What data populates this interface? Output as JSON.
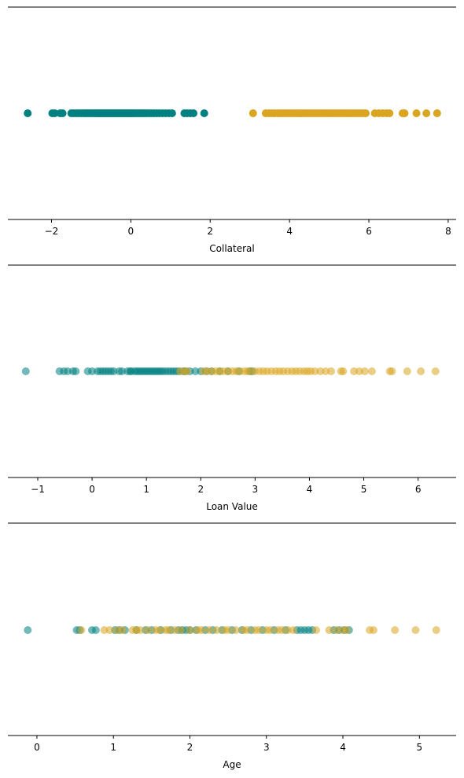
{
  "colors": {
    "class_a": "#008080",
    "class_b": "#DAA520"
  },
  "chart_data": [
    {
      "type": "scatter",
      "xlabel": "Collateral",
      "xlim": [
        -3.1,
        8.2
      ],
      "xticks": [
        -2,
        0,
        2,
        4,
        6,
        8
      ],
      "tick_labels": [
        "−2",
        "0",
        "2",
        "4",
        "6",
        "8"
      ],
      "point_opacity": 1.0,
      "series": [
        {
          "color": "#008080",
          "values": [
            -2.6,
            -1.98,
            -1.92,
            -1.78,
            -1.72,
            -1.5,
            -1.44,
            -1.38,
            -1.32,
            -1.26,
            -1.2,
            -1.15,
            -1.1,
            -1.05,
            -1.0,
            -0.95,
            -0.9,
            -0.86,
            -0.82,
            -0.78,
            -0.74,
            -0.7,
            -0.66,
            -0.62,
            -0.58,
            -0.54,
            -0.5,
            -0.46,
            -0.42,
            -0.38,
            -0.34,
            -0.3,
            -0.26,
            -0.22,
            -0.18,
            -0.14,
            -0.1,
            -0.06,
            -0.02,
            0.02,
            0.06,
            0.1,
            0.15,
            0.2,
            0.25,
            0.3,
            0.35,
            0.4,
            0.46,
            0.52,
            0.58,
            0.65,
            0.72,
            0.8,
            0.88,
            0.96,
            1.04,
            1.35,
            1.42,
            1.5,
            1.58,
            1.85
          ]
        },
        {
          "color": "#DAA520",
          "values": [
            3.08,
            3.4,
            3.48,
            3.55,
            3.62,
            3.7,
            3.76,
            3.82,
            3.88,
            3.94,
            4.0,
            4.06,
            4.12,
            4.18,
            4.24,
            4.3,
            4.36,
            4.42,
            4.48,
            4.54,
            4.6,
            4.66,
            4.72,
            4.78,
            4.84,
            4.9,
            4.96,
            5.02,
            5.08,
            5.14,
            5.2,
            5.26,
            5.32,
            5.38,
            5.44,
            5.5,
            5.56,
            5.62,
            5.68,
            5.74,
            5.8,
            5.86,
            5.92,
            6.15,
            6.25,
            6.35,
            6.45,
            6.52,
            6.85,
            6.9,
            7.2,
            7.45,
            7.72
          ]
        }
      ]
    },
    {
      "type": "scatter",
      "xlabel": "Loan Value",
      "xlim": [
        -1.55,
        6.7
      ],
      "xticks": [
        -1,
        0,
        1,
        2,
        3,
        4,
        5,
        6
      ],
      "tick_labels": [
        "−1",
        "0",
        "1",
        "2",
        "3",
        "4",
        "5",
        "6"
      ],
      "point_opacity": 0.55,
      "series": [
        {
          "color": "#008080",
          "values": [
            -1.22,
            -0.6,
            -0.52,
            -0.45,
            -0.35,
            -0.3,
            -0.08,
            0.0,
            0.1,
            0.15,
            0.2,
            0.25,
            0.3,
            0.35,
            0.4,
            0.5,
            0.55,
            0.65,
            0.7,
            0.72,
            0.78,
            0.82,
            0.86,
            0.9,
            0.94,
            0.98,
            1.02,
            1.06,
            1.1,
            1.14,
            1.18,
            1.22,
            1.26,
            1.3,
            1.35,
            1.4,
            1.45,
            1.5,
            1.55,
            1.6,
            1.68,
            1.72,
            1.8,
            1.9,
            2.0,
            2.1,
            2.2,
            2.35,
            2.5,
            2.7,
            2.9,
            2.95
          ]
        },
        {
          "color": "#DAA520",
          "values": [
            1.62,
            1.7,
            1.75,
            2.05,
            2.12,
            2.2,
            2.28,
            2.35,
            2.42,
            2.5,
            2.58,
            2.65,
            2.72,
            2.8,
            2.86,
            2.92,
            3.0,
            3.08,
            3.15,
            3.22,
            3.3,
            3.38,
            3.45,
            3.52,
            3.6,
            3.68,
            3.75,
            3.82,
            3.9,
            3.96,
            4.02,
            4.1,
            4.2,
            4.3,
            4.4,
            4.58,
            4.62,
            4.82,
            4.92,
            5.02,
            5.15,
            5.48,
            5.52,
            5.8,
            6.05,
            6.32
          ]
        }
      ]
    },
    {
      "type": "scatter",
      "xlabel": "Age",
      "xlim": [
        -0.38,
        5.48
      ],
      "xticks": [
        0,
        1,
        2,
        3,
        4,
        5
      ],
      "tick_labels": [
        "0",
        "1",
        "2",
        "3",
        "4",
        "5"
      ],
      "point_opacity": 0.55,
      "series": [
        {
          "color": "#008080",
          "values": [
            -0.12,
            0.52,
            0.56,
            0.72,
            0.77,
            1.02,
            1.08,
            1.15,
            1.3,
            1.42,
            1.5,
            1.62,
            1.75,
            1.85,
            1.9,
            1.95,
            2.0,
            2.08,
            2.2,
            2.3,
            2.42,
            2.55,
            2.68,
            2.8,
            2.95,
            3.1,
            3.25,
            3.4,
            3.45,
            3.5,
            3.55,
            3.6,
            3.88,
            3.95,
            4.02,
            4.08
          ]
        },
        {
          "color": "#DAA520",
          "values": [
            0.58,
            0.88,
            0.95,
            1.05,
            1.12,
            1.25,
            1.3,
            1.35,
            1.45,
            1.55,
            1.6,
            1.68,
            1.72,
            1.8,
            1.88,
            2.0,
            2.1,
            2.15,
            2.25,
            2.35,
            2.45,
            2.5,
            2.6,
            2.7,
            2.75,
            2.85,
            2.9,
            3.0,
            3.05,
            3.15,
            3.2,
            3.28,
            3.35,
            3.65,
            3.82,
            3.92,
            4.0,
            4.05,
            4.35,
            4.4,
            4.68,
            4.95,
            5.22
          ]
        }
      ]
    }
  ]
}
